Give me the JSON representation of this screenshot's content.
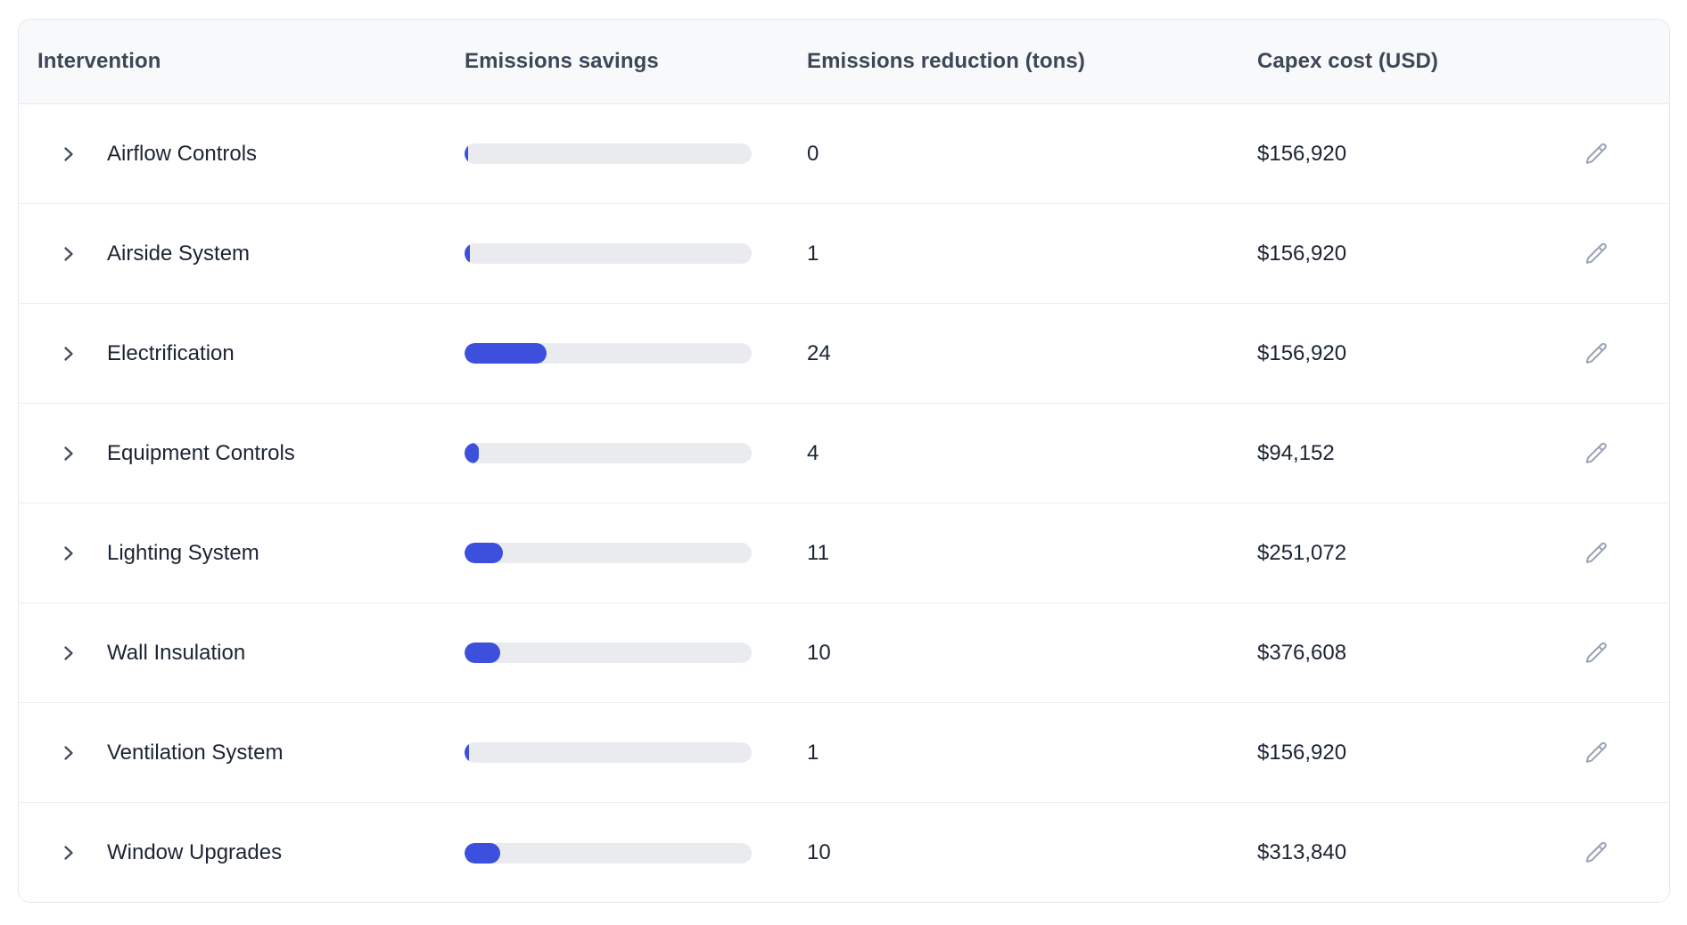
{
  "table": {
    "columns": [
      {
        "label": "Intervention"
      },
      {
        "label": "Emissions savings"
      },
      {
        "label": "Emissions reduction (tons)"
      },
      {
        "label": "Capex cost (USD)"
      }
    ],
    "rows": [
      {
        "intervention": "Airflow Controls",
        "savings_pct": 1.2,
        "reduction_tons": "0",
        "capex": "$156,920"
      },
      {
        "intervention": "Airside System",
        "savings_pct": 1.8,
        "reduction_tons": "1",
        "capex": "$156,920"
      },
      {
        "intervention": "Electrification",
        "savings_pct": 28.6,
        "reduction_tons": "24",
        "capex": "$156,920"
      },
      {
        "intervention": "Equipment Controls",
        "savings_pct": 5.0,
        "reduction_tons": "4",
        "capex": "$94,152"
      },
      {
        "intervention": "Lighting System",
        "savings_pct": 13.4,
        "reduction_tons": "11",
        "capex": "$251,072"
      },
      {
        "intervention": "Wall Insulation",
        "savings_pct": 12.4,
        "reduction_tons": "10",
        "capex": "$376,608"
      },
      {
        "intervention": "Ventilation System",
        "savings_pct": 1.5,
        "reduction_tons": "1",
        "capex": "$156,920"
      },
      {
        "intervention": "Window Upgrades",
        "savings_pct": 12.4,
        "reduction_tons": "10",
        "capex": "$313,840"
      }
    ]
  },
  "colors": {
    "bar_fill": "#3c50dd",
    "bar_track": "#e9ebef",
    "header_bg": "#f8f9fb",
    "header_text": "#3c4758",
    "row_text": "#1b2433",
    "icon_chevron": "#404c5f",
    "icon_pencil": "#98a2b3"
  },
  "icons": {
    "expand": "chevron-right-icon",
    "edit": "pencil-icon"
  }
}
